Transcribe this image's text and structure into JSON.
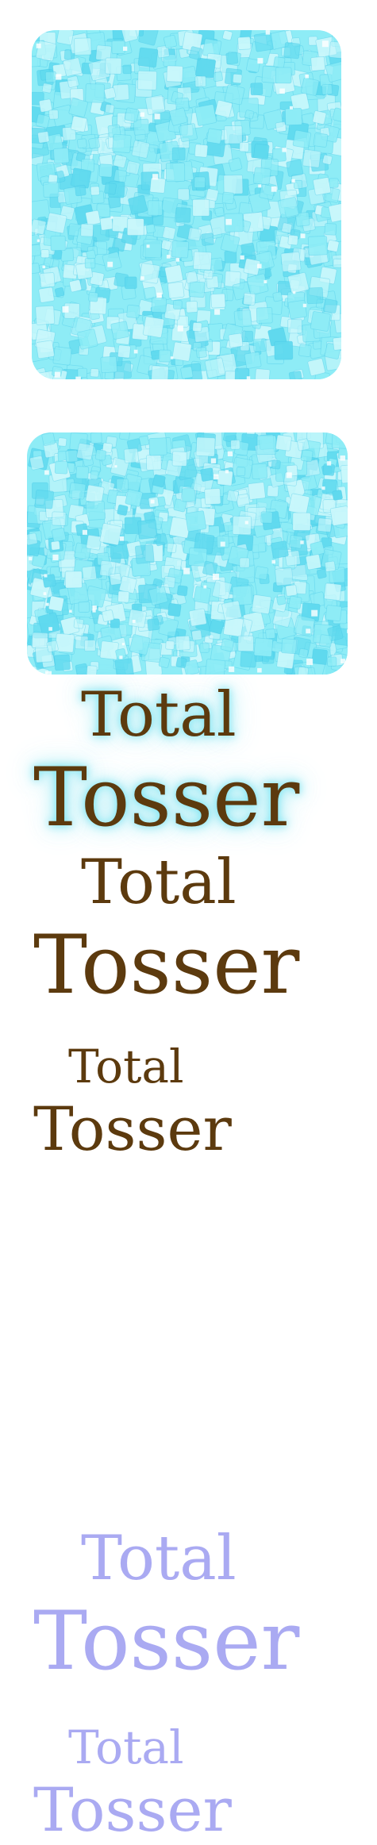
{
  "colors": {
    "brown_text": "#5c3a0e",
    "faded_text": "#aaaaf2",
    "glow": "#6ee1f0",
    "tile_light": "#c9f7fb",
    "tile_mid": "#8eecf6",
    "tile_dark": "#5fd9ee",
    "tile_edge": "#3fc3e6"
  },
  "logos": [
    {
      "word1": "Total",
      "word2": "Tosser"
    },
    {
      "word1": "Total",
      "word2": "Tosser"
    },
    {
      "word1": "Total",
      "word2": "Tosser"
    },
    {
      "word1": "Total",
      "word2": "Tosser"
    },
    {
      "word1": "Total",
      "word2": "Tosser"
    }
  ]
}
